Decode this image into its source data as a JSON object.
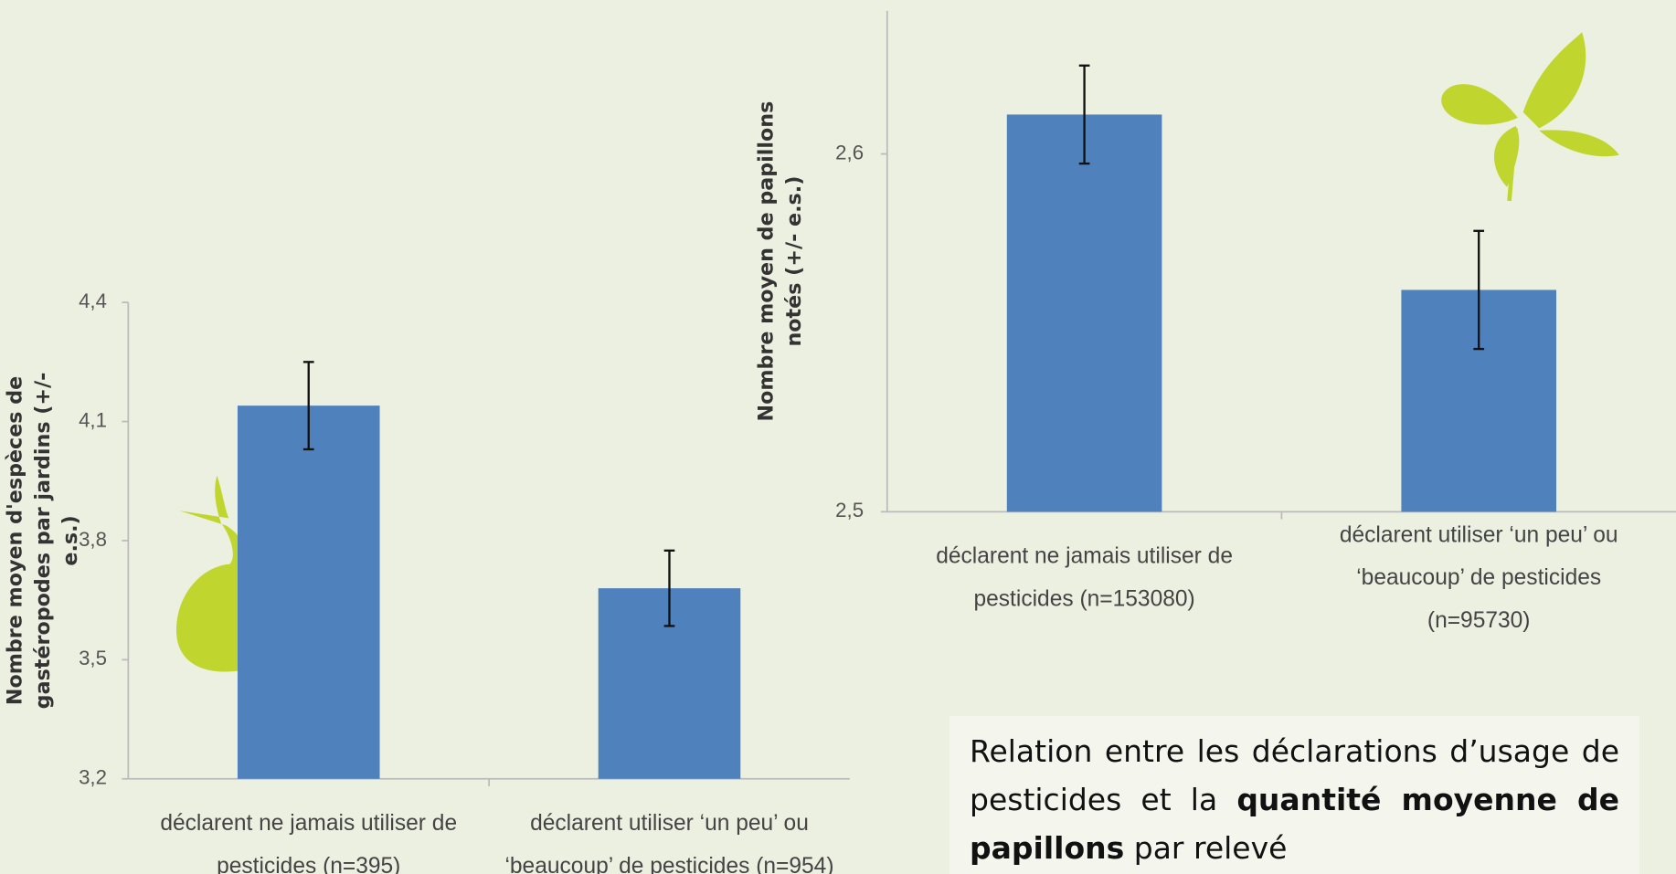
{
  "chart_data": [
    {
      "type": "bar",
      "y_label": "Nombre moyen d'espèces de gastéropodes par jardins (+/- e.s.)",
      "categories": [
        "déclarent ne jamais utiliser de pesticides (n=395)",
        "déclarent utiliser ‘un peu’ ou ‘beaucoup’ de pesticides (n=954)"
      ],
      "values": [
        4.14,
        3.68
      ],
      "errors": [
        0.11,
        0.095
      ],
      "color": "#4f81bd",
      "ylim": [
        3.2,
        4.4
      ],
      "yticks": [
        {
          "value": 3.2,
          "label": "3,2"
        },
        {
          "value": 3.5,
          "label": "3,5"
        },
        {
          "value": 3.8,
          "label": "3,8"
        },
        {
          "value": 4.1,
          "label": "4,1"
        },
        {
          "value": 4.4,
          "label": "4,4"
        }
      ]
    },
    {
      "type": "bar",
      "y_label": "Nombre moyen de papillons notés (+/- e.s.)",
      "categories": [
        "déclarent ne jamais utiliser de pesticides (n=153080)",
        "déclarent utiliser ‘un peu’ ou ‘beaucoup’ de pesticides (n=95730)"
      ],
      "values": [
        2.611,
        2.562
      ],
      "errors": [
        0.0137,
        0.0165
      ],
      "color": "#4f81bd",
      "ylim": [
        2.5,
        2.64
      ],
      "yticks": [
        {
          "value": 2.5,
          "label": "2,5"
        },
        {
          "value": 2.6,
          "label": "2,6"
        }
      ]
    }
  ],
  "caption": {
    "parts": [
      "Relation entre les déclarations d’usage de pesticides et la ",
      "quantité moyenne de papillons",
      " par relevé"
    ]
  }
}
